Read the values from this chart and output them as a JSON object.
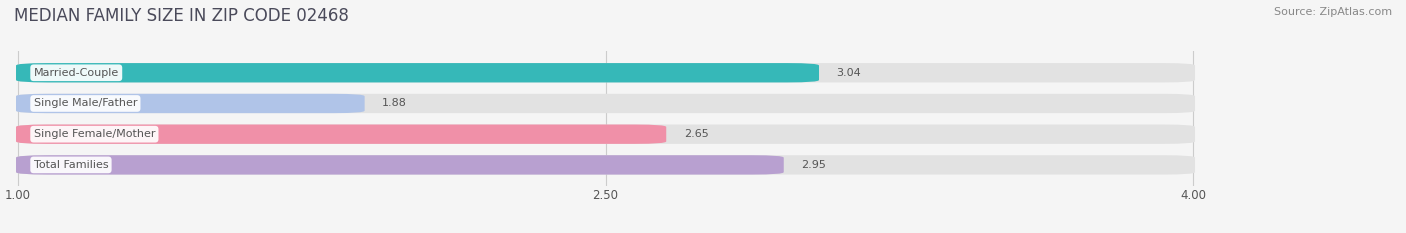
{
  "title": "MEDIAN FAMILY SIZE IN ZIP CODE 02468",
  "source": "Source: ZipAtlas.com",
  "categories": [
    "Married-Couple",
    "Single Male/Father",
    "Single Female/Mother",
    "Total Families"
  ],
  "values": [
    3.04,
    1.88,
    2.65,
    2.95
  ],
  "bar_colors": [
    "#36b8b8",
    "#b0c4e8",
    "#f090a8",
    "#b8a0d0"
  ],
  "bar_labels": [
    "3.04",
    "1.88",
    "2.65",
    "2.95"
  ],
  "xlim_min": 1.0,
  "xlim_max": 4.0,
  "xticks": [
    1.0,
    2.5,
    4.0
  ],
  "xticklabels": [
    "1.00",
    "2.50",
    "4.00"
  ],
  "background_color": "#f5f5f5",
  "bar_background_color": "#e2e2e2",
  "title_fontsize": 12,
  "source_fontsize": 8,
  "label_fontsize": 8,
  "value_fontsize": 8,
  "tick_fontsize": 8.5,
  "bar_height": 0.62,
  "label_color": "#555555",
  "title_color": "#4a4a5a",
  "source_color": "#888888",
  "value_label_color": "#555555",
  "category_label_bg": "white",
  "gridline_color": "#cccccc"
}
